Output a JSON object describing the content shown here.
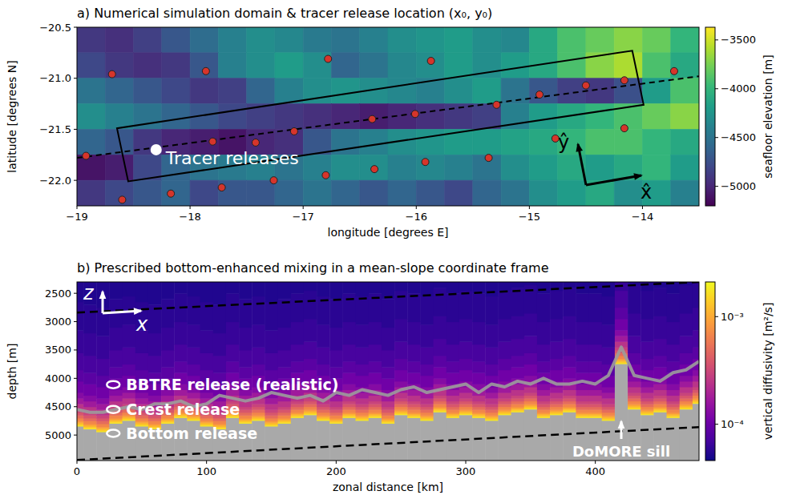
{
  "chart_data": [
    {
      "type": "map",
      "title": "a) Numerical simulation domain & tracer release location (x₀, y₀)",
      "x_label": "longitude [degrees E]",
      "y_label": "latitude [degrees N]",
      "xlim": [
        -19,
        -13.5
      ],
      "ylim": [
        -22.25,
        -20.5
      ],
      "xticks": [
        {
          "value": -19,
          "label": "−19"
        },
        {
          "value": -18,
          "label": "−18"
        },
        {
          "value": -17,
          "label": "−17"
        },
        {
          "value": -16,
          "label": "−16"
        },
        {
          "value": -15,
          "label": "−15"
        },
        {
          "value": -14,
          "label": "−14"
        }
      ],
      "yticks": [
        {
          "value": -20.5,
          "label": "−20.5"
        },
        {
          "value": -21.0,
          "label": "−21.0"
        },
        {
          "value": -21.5,
          "label": "−21.5"
        },
        {
          "value": -22.0,
          "label": "−22.0"
        }
      ],
      "bathymetry": {
        "lon_edges": [
          -19,
          -18.75,
          -18.5,
          -18.25,
          -18,
          -17.75,
          -17.5,
          -17.25,
          -17,
          -16.75,
          -16.5,
          -16.25,
          -16,
          -15.75,
          -15.5,
          -15.25,
          -15,
          -14.75,
          -14.5,
          -14.25,
          -14,
          -13.75,
          -13.5
        ],
        "lat_edges": [
          -20.5,
          -20.75,
          -21,
          -21.25,
          -21.5,
          -21.75,
          -22,
          -22.25
        ],
        "values": [
          [
            -4900,
            -4950,
            -4850,
            -4700,
            -4550,
            -4400,
            -4300,
            -4350,
            -4450,
            -4500,
            -4400,
            -4300,
            -4250,
            -4200,
            -4300,
            -4350,
            -4100,
            -3900,
            -3800,
            -3700,
            -3800,
            -4000
          ],
          [
            -4800,
            -4900,
            -4950,
            -4900,
            -4700,
            -4400,
            -4300,
            -4200,
            -4300,
            -4600,
            -4500,
            -4350,
            -4300,
            -4200,
            -4300,
            -4200,
            -4100,
            -3900,
            -3700,
            -3600,
            -3900,
            -4100
          ],
          [
            -4500,
            -4600,
            -4700,
            -4800,
            -4900,
            -4850,
            -4600,
            -4400,
            -4300,
            -4250,
            -4300,
            -4350,
            -4400,
            -4300,
            -4200,
            -4500,
            -4700,
            -4850,
            -4900,
            -4750,
            -4200,
            -3900
          ],
          [
            -4300,
            -4400,
            -4500,
            -4600,
            -4700,
            -4800,
            -4850,
            -4900,
            -4950,
            -5000,
            -5050,
            -5000,
            -4950,
            -4900,
            -4850,
            -4400,
            -4200,
            -4100,
            -4000,
            -3900,
            -3800,
            -3700
          ],
          [
            -4600,
            -4700,
            -4900,
            -5000,
            -5050,
            -5100,
            -5000,
            -4950,
            -4700,
            -4500,
            -4400,
            -4300,
            -4250,
            -4200,
            -4200,
            -4150,
            -4100,
            -4000,
            -3900,
            -3900,
            -4000,
            -4100
          ],
          [
            -5100,
            -5050,
            -4800,
            -4600,
            -4500,
            -4450,
            -4400,
            -4500,
            -4400,
            -4300,
            -4300,
            -4400,
            -4350,
            -4400,
            -4500,
            -4300,
            -4200,
            -4100,
            -4200,
            -4100,
            -4000,
            -4200
          ],
          [
            -4900,
            -4800,
            -4700,
            -4600,
            -4800,
            -4700,
            -4700,
            -4600,
            -4500,
            -4600,
            -4700,
            -4600,
            -4700,
            -4800,
            -4600,
            -4500,
            -4300,
            -4200,
            -4100,
            -4300,
            -4200,
            -4400
          ]
        ]
      },
      "colorbar": {
        "label": "seafloor elevation [m]",
        "lim": [
          -5200,
          -3370
        ],
        "ticks": [
          {
            "value": -3500,
            "label": "−3500"
          },
          {
            "value": -4000,
            "label": "−4000"
          },
          {
            "value": -4500,
            "label": "−4500"
          },
          {
            "value": -5000,
            "label": "−5000"
          }
        ]
      },
      "markers": {
        "color": "#d6352b",
        "lon": [
          -18.69,
          -17.86,
          -16.78,
          -15.87,
          -18.92,
          -17.8,
          -17.42,
          -17.08,
          -16.39,
          -16.01,
          -15.29,
          -14.91,
          -14.5,
          -14.16,
          -13.72,
          -14.16,
          -14.77,
          -15.36,
          -15.92,
          -16.37,
          -16.8,
          -17.26,
          -17.72,
          -18.17,
          -18.6
        ],
        "lat": [
          -20.96,
          -20.93,
          -20.81,
          -20.83,
          -21.76,
          -21.62,
          -21.63,
          -21.52,
          -21.4,
          -21.35,
          -21.26,
          -21.16,
          -21.07,
          -21.02,
          -20.93,
          -21.49,
          -21.59,
          -21.78,
          -21.82,
          -21.89,
          -21.95,
          -22.0,
          -22.07,
          -22.13,
          -22.19
        ]
      },
      "domain_box": {
        "lon": [
          -18.646,
          -18.547,
          -13.99,
          -14.09
        ],
        "lat": [
          -21.49,
          -22.01,
          -21.26,
          -20.73
        ]
      },
      "centerline": {
        "lon": [
          -19,
          -13.5
        ],
        "lat": [
          -21.78,
          -20.98
        ]
      },
      "tracer_release": {
        "label": "Tracer releases",
        "lon": -18.3,
        "lat": -21.7
      },
      "axis_arrows": {
        "x_label": "x̂",
        "y_label": "ŷ"
      }
    },
    {
      "type": "section",
      "title": "b) Prescribed bottom-enhanced mixing in a mean-slope coordinate frame",
      "x_label": "zonal distance [km]",
      "y_label": "depth [m]",
      "xlim": [
        0,
        480
      ],
      "ylim": [
        5450,
        2300
      ],
      "xticks": [
        0,
        100,
        200,
        300,
        400
      ],
      "yticks": [
        2500,
        3000,
        3500,
        4000,
        4500,
        5000
      ],
      "diffusivity_profile": {
        "height_above_bottom": [
          0,
          25,
          50,
          75,
          100,
          150,
          200,
          250,
          300,
          400,
          500,
          600,
          800,
          1000,
          1300,
          1700,
          2200,
          3000
        ],
        "diffusivity": [
          0.0018,
          0.0014,
          0.0011,
          0.00085,
          0.00068,
          0.0005,
          0.00038,
          0.0003,
          0.00024,
          0.00017,
          0.00013,
          0.000105,
          8.5e-05,
          7.2e-05,
          6.3e-05,
          5.7e-05,
          5.3e-05,
          5.1e-05
        ]
      },
      "seafloor": {
        "x": [
          0,
          10,
          20,
          30,
          40,
          50,
          60,
          70,
          80,
          90,
          100,
          110,
          120,
          130,
          140,
          150,
          160,
          170,
          180,
          190,
          200,
          210,
          220,
          230,
          240,
          250,
          260,
          270,
          280,
          290,
          300,
          310,
          320,
          330,
          340,
          350,
          360,
          370,
          380,
          390,
          400,
          410,
          420,
          430,
          440,
          450,
          460,
          470,
          480
        ],
        "depth": [
          4850,
          4900,
          4950,
          4800,
          4750,
          4850,
          4900,
          4800,
          4700,
          4750,
          4850,
          4900,
          4700,
          4800,
          4750,
          4850,
          4800,
          4700,
          4650,
          4750,
          4800,
          4700,
          4750,
          4700,
          4800,
          4650,
          4700,
          4750,
          4600,
          4700,
          4650,
          4700,
          4750,
          4650,
          4600,
          4550,
          4700,
          4650,
          4600,
          4700,
          4700,
          4750,
          3750,
          4550,
          4650,
          4600,
          4700,
          4550,
          4450
        ]
      },
      "gray_line": {
        "x": [
          0,
          10,
          20,
          30,
          40,
          50,
          60,
          70,
          80,
          90,
          100,
          110,
          120,
          130,
          140,
          150,
          160,
          170,
          180,
          190,
          200,
          210,
          220,
          230,
          240,
          250,
          260,
          270,
          280,
          290,
          300,
          310,
          320,
          330,
          340,
          350,
          360,
          370,
          380,
          390,
          400,
          410,
          420,
          430,
          440,
          450,
          460,
          470,
          480
        ],
        "depth": [
          4550,
          4600,
          4600,
          4550,
          4500,
          4550,
          4450,
          4450,
          4400,
          4500,
          4450,
          4300,
          4350,
          4400,
          4350,
          4250,
          4300,
          4350,
          4300,
          4400,
          4250,
          4300,
          4200,
          4250,
          4300,
          4200,
          4150,
          4250,
          4200,
          4150,
          4100,
          4250,
          4100,
          4150,
          4050,
          4100,
          4000,
          4100,
          4100,
          4050,
          4100,
          3950,
          3450,
          3950,
          4000,
          4050,
          3900,
          3850,
          3700
        ]
      },
      "slope_lines": [
        {
          "x": [
            0,
            480
          ],
          "depth": [
            2840,
            2300
          ]
        },
        {
          "x": [
            0,
            480
          ],
          "depth": [
            5440,
            4860
          ]
        }
      ],
      "release_markers": [
        {
          "label": "BBTRE release (realistic)",
          "x": 28,
          "depth": 4110
        },
        {
          "label": "Crest release",
          "x": 28,
          "depth": 4550
        },
        {
          "label": "Bottom release",
          "x": 28,
          "depth": 4970
        }
      ],
      "annotation": {
        "text": "DoMORE sill",
        "x": 420
      },
      "colorbar": {
        "label": "vertical diffusivity [m²/s]",
        "lim": [
          4.6e-05,
          0.0021
        ],
        "log": true,
        "ticks": [
          {
            "value": 0.001,
            "label": "10⁻³"
          },
          {
            "value": 0.0001,
            "label": "10⁻⁴"
          }
        ]
      },
      "axis_arrows": {
        "x_label": "x",
        "z_label": "z"
      }
    }
  ]
}
